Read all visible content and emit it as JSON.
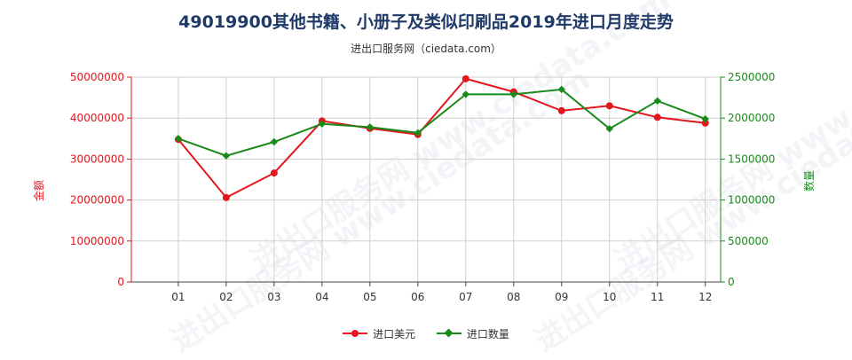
{
  "chart_data": {
    "type": "line",
    "title": "49019900其他书籍、小册子及类似印刷品2019年进口月度走势",
    "subtitle": "进出口服务网（ciedata.com）",
    "categories": [
      "01",
      "02",
      "03",
      "04",
      "05",
      "06",
      "07",
      "08",
      "09",
      "10",
      "11",
      "12"
    ],
    "y_left": {
      "label": "金额",
      "ylim": [
        0,
        50000000
      ],
      "ticks": [
        "0",
        "10000000",
        "20000000",
        "30000000",
        "40000000",
        "50000000"
      ]
    },
    "y_right": {
      "label": "数量",
      "ylim": [
        0,
        2500000
      ],
      "ticks": [
        "0",
        "500000",
        "1000000",
        "1500000",
        "2000000",
        "2500000"
      ]
    },
    "series": [
      {
        "name": "进口美元",
        "axis": "left",
        "color": "#e3161d",
        "values": [
          34800000,
          20600000,
          26600000,
          39300000,
          37500000,
          36000000,
          49600000,
          46400000,
          41800000,
          43000000,
          40200000,
          38800000
        ]
      },
      {
        "name": "进口数量",
        "axis": "right",
        "color": "#1a8a1a",
        "values": [
          1750000,
          1540000,
          1710000,
          1930000,
          1890000,
          1820000,
          2290000,
          2290000,
          2350000,
          1870000,
          2210000,
          1990000
        ]
      }
    ],
    "grid": true,
    "legend_position": "bottom-center"
  },
  "watermark": "进出口服务网 www.ciedata.com"
}
